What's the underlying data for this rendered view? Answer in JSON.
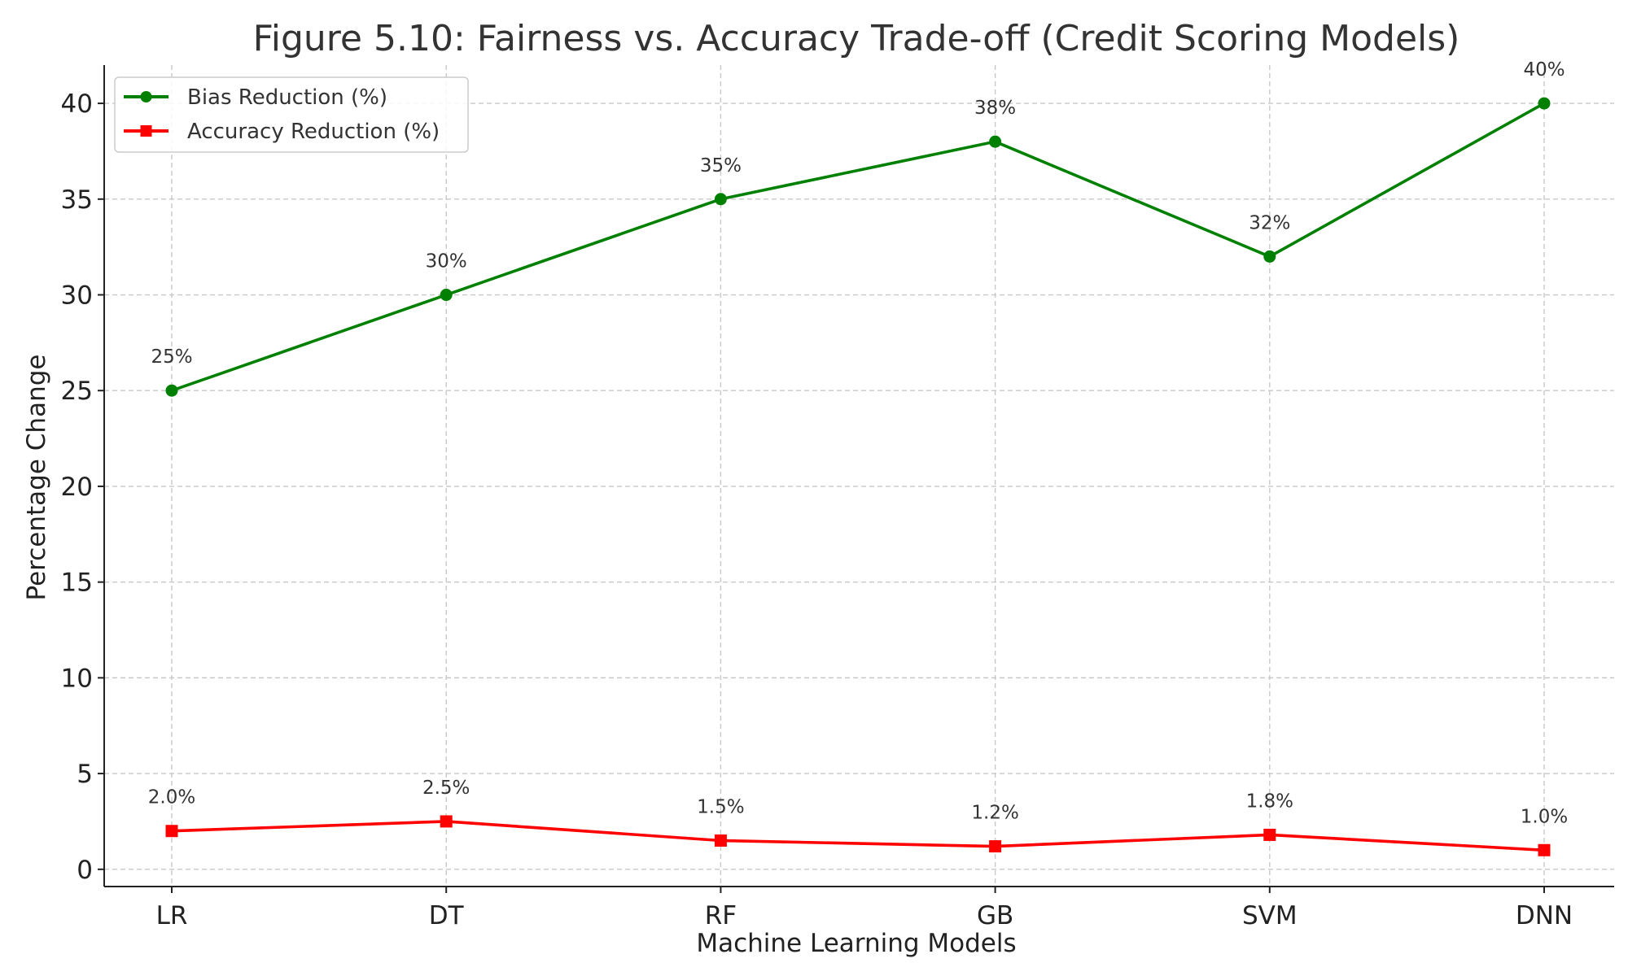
{
  "chart_data": {
    "type": "line",
    "title": "Figure 5.10: Fairness vs. Accuracy Trade-off (Credit Scoring Models)",
    "xlabel": "Machine Learning Models",
    "ylabel": "Percentage Change",
    "categories": [
      "LR",
      "DT",
      "RF",
      "GB",
      "SVM",
      "DNN"
    ],
    "ylim": [
      -0.9,
      42
    ],
    "yticks": [
      0,
      5,
      10,
      15,
      20,
      25,
      30,
      35,
      40
    ],
    "grid": true,
    "legend_position": "top-left",
    "series": [
      {
        "name": "Bias Reduction (%)",
        "color": "#008000",
        "marker": "circle",
        "values": [
          25,
          30,
          35,
          38,
          32,
          40
        ],
        "labels": [
          "25%",
          "30%",
          "35%",
          "38%",
          "32%",
          "40%"
        ]
      },
      {
        "name": "Accuracy Reduction (%)",
        "color": "#ff0000",
        "marker": "square",
        "values": [
          2.0,
          2.5,
          1.5,
          1.2,
          1.8,
          1.0
        ],
        "labels": [
          "2.0%",
          "2.5%",
          "1.5%",
          "1.2%",
          "1.8%",
          "1.0%"
        ]
      }
    ]
  }
}
